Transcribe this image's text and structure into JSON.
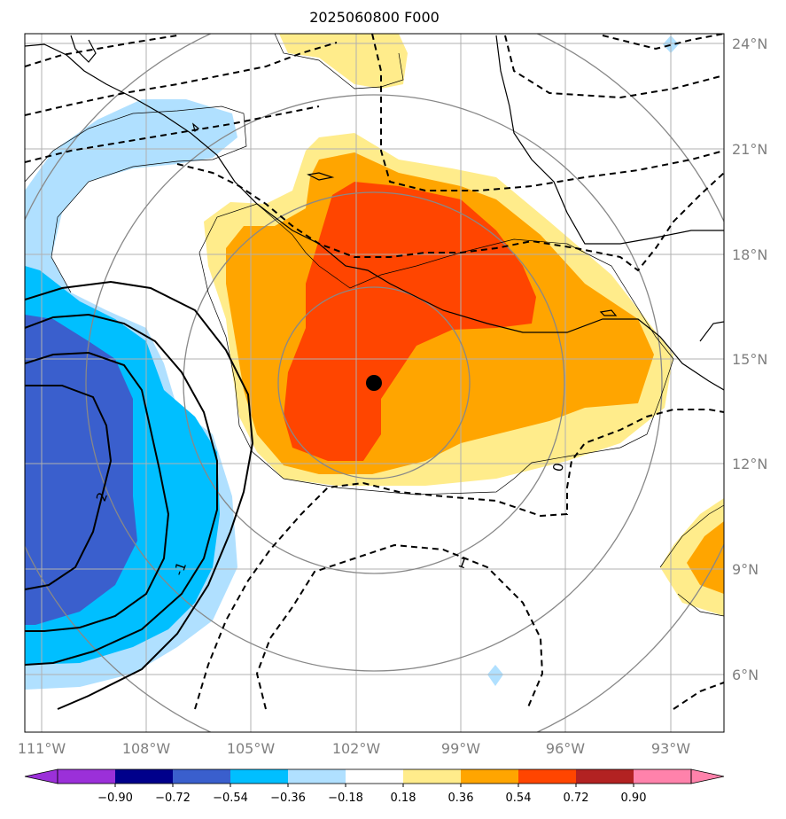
{
  "title": "2025060800 F000",
  "lat_labels": [
    "24°N",
    "21°N",
    "18°N",
    "15°N",
    "12°N",
    "9°N",
    "6°N"
  ],
  "lon_labels": [
    "111°W",
    "108°W",
    "105°W",
    "102°W",
    "99°W",
    "96°W",
    "93°W"
  ],
  "contour_labels": [
    "-2",
    "-1",
    "0",
    "1"
  ],
  "colorbar": {
    "ticks": [
      "−0.90",
      "−0.72",
      "−0.54",
      "−0.36",
      "−0.18",
      "0.18",
      "0.36",
      "0.54",
      "0.72",
      "0.90"
    ],
    "colors": [
      "#9b30d9",
      "#00008b",
      "#3a5fcd",
      "#00bfff",
      "#b0e0ff",
      "#ffffff",
      "#ffec8b",
      "#ffa500",
      "#ff4500",
      "#b22222",
      "#ff82ab",
      "#ff82ab"
    ]
  },
  "center_marker": "storm-center"
}
